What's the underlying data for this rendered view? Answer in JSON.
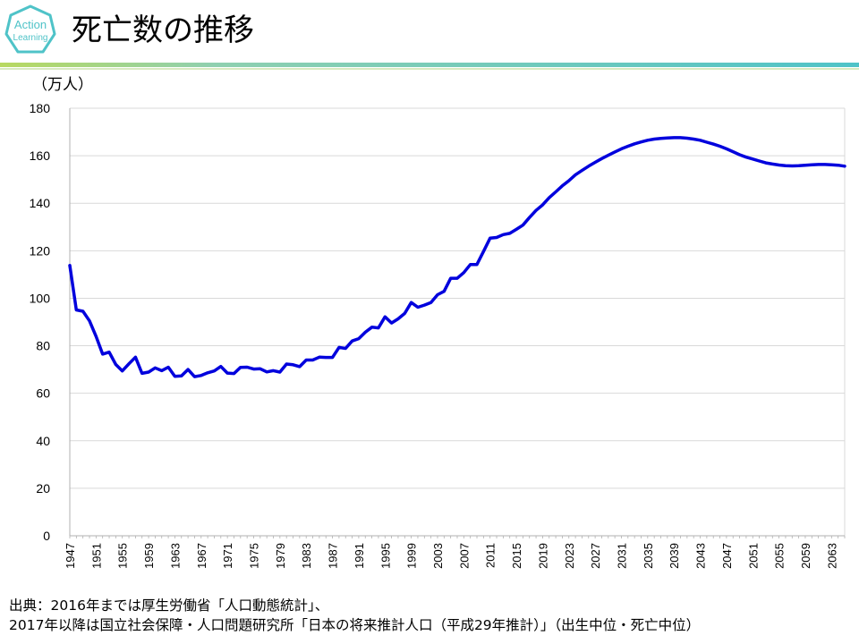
{
  "header": {
    "logo_text_1": "Action",
    "logo_text_2": "Learning",
    "title": "死亡数の推移"
  },
  "colors": {
    "accent_teal": "#4fc3c8",
    "banner_green": "#9ccc3c",
    "series_blue": "#0000dd",
    "grid": "#d9d9d9"
  },
  "chart_data": {
    "type": "line",
    "title": "死亡数の推移",
    "ylabel": "（万人）",
    "xlabel": "",
    "ylim": [
      0,
      180
    ],
    "yticks": [
      0,
      20,
      40,
      60,
      80,
      100,
      120,
      140,
      160,
      180
    ],
    "xlim": [
      1947,
      2065
    ],
    "xticks": [
      1947,
      1951,
      1955,
      1959,
      1963,
      1967,
      1971,
      1975,
      1979,
      1983,
      1987,
      1991,
      1995,
      1999,
      2003,
      2007,
      2011,
      2015,
      2019,
      2023,
      2027,
      2031,
      2035,
      2039,
      2043,
      2047,
      2051,
      2055,
      2059,
      2063
    ],
    "grid": true,
    "series": [
      {
        "name": "死亡数",
        "x": [
          1947,
          1948,
          1949,
          1950,
          1951,
          1952,
          1953,
          1954,
          1955,
          1956,
          1957,
          1958,
          1959,
          1960,
          1961,
          1962,
          1963,
          1964,
          1965,
          1966,
          1967,
          1968,
          1969,
          1970,
          1971,
          1972,
          1973,
          1974,
          1975,
          1976,
          1977,
          1978,
          1979,
          1980,
          1981,
          1982,
          1983,
          1984,
          1985,
          1986,
          1987,
          1988,
          1989,
          1990,
          1991,
          1992,
          1993,
          1994,
          1995,
          1996,
          1997,
          1998,
          1999,
          2000,
          2001,
          2002,
          2003,
          2004,
          2005,
          2006,
          2007,
          2008,
          2009,
          2010,
          2011,
          2012,
          2013,
          2014,
          2015,
          2016,
          2017,
          2018,
          2019,
          2020,
          2021,
          2022,
          2023,
          2024,
          2025,
          2026,
          2027,
          2028,
          2029,
          2030,
          2031,
          2032,
          2033,
          2034,
          2035,
          2036,
          2037,
          2038,
          2039,
          2040,
          2041,
          2042,
          2043,
          2044,
          2045,
          2046,
          2047,
          2048,
          2049,
          2050,
          2051,
          2052,
          2053,
          2054,
          2055,
          2056,
          2057,
          2058,
          2059,
          2060,
          2061,
          2062,
          2063,
          2064,
          2065
        ],
        "values": [
          113.8,
          95.1,
          94.5,
          90.5,
          83.9,
          76.5,
          77.3,
          72.1,
          69.4,
          72.4,
          75.2,
          68.4,
          68.9,
          70.7,
          69.5,
          71.0,
          67.1,
          67.3,
          70.0,
          67.0,
          67.5,
          68.6,
          69.4,
          71.3,
          68.5,
          68.3,
          70.9,
          71.0,
          70.2,
          70.3,
          69.0,
          69.5,
          68.9,
          72.3,
          72.0,
          71.2,
          74.0,
          74.0,
          75.2,
          75.1,
          75.1,
          79.3,
          78.9,
          82.0,
          83.0,
          85.7,
          87.8,
          87.5,
          92.2,
          89.6,
          91.3,
          93.6,
          98.2,
          96.2,
          97.1,
          98.2,
          101.5,
          102.9,
          108.4,
          108.4,
          110.8,
          114.2,
          114.2,
          119.7,
          125.3,
          125.6,
          126.8,
          127.3,
          129.0,
          130.8,
          134.0,
          137.0,
          139.3,
          142.3,
          144.8,
          147.3,
          149.5,
          152.0,
          153.8,
          155.6,
          157.2,
          158.8,
          160.2,
          161.6,
          162.9,
          164.0,
          165.0,
          165.8,
          166.5,
          167.0,
          167.3,
          167.5,
          167.6,
          167.6,
          167.4,
          167.0,
          166.5,
          165.7,
          164.9,
          164.0,
          162.9,
          161.7,
          160.4,
          159.4,
          158.6,
          157.8,
          157.0,
          156.5,
          156.1,
          155.8,
          155.7,
          155.8,
          156.0,
          156.2,
          156.3,
          156.3,
          156.2,
          156.0,
          155.6
        ]
      }
    ]
  },
  "footer": {
    "source_line_1": "出典：2016年までは厚生労働省「人口動態統計」、",
    "source_line_2": "2017年以降は国立社会保障・人口問題研究所「日本の将来推計人口（平成29年推計）」（出生中位・死亡中位）"
  }
}
